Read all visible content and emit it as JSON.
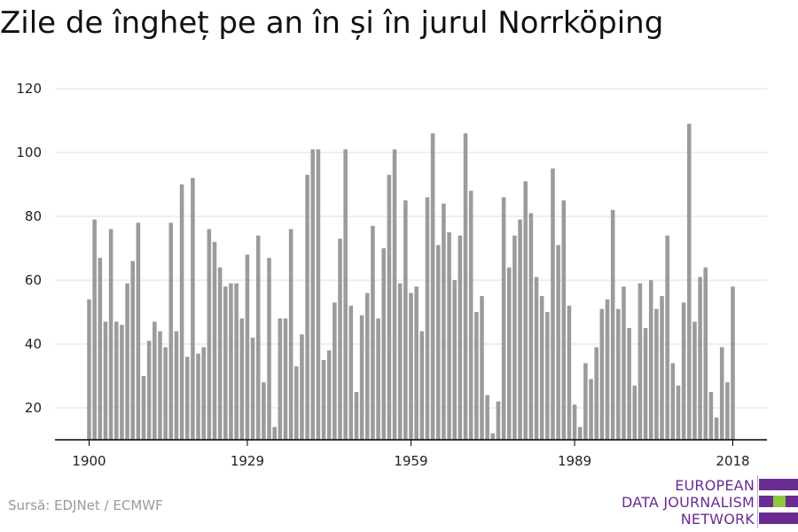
{
  "title": "Zile de îngheț pe an în și în jurul Norrköping",
  "source": "Sursă: EDJNet / ECMWF",
  "logo": {
    "lines": [
      "EUROPEAN",
      "DATA JOURNALISM",
      "NETWORK"
    ],
    "colors": {
      "purple": "#6a2c91",
      "green": "#8dc63f"
    }
  },
  "colors": {
    "bar": "#9b9b9b",
    "grid": "#dddddd",
    "axis": "#000000"
  },
  "chart_data": {
    "type": "bar",
    "title": "Zile de îngheț pe an în și în jurul Norrköping",
    "xlabel": "",
    "ylabel": "",
    "ylim": [
      10,
      120
    ],
    "yticks": [
      20,
      40,
      60,
      80,
      100,
      120
    ],
    "xticks": [
      1900,
      1929,
      1959,
      1989,
      2018
    ],
    "grid": true,
    "legend": "none",
    "x": [
      1900,
      1901,
      1902,
      1903,
      1904,
      1905,
      1906,
      1907,
      1908,
      1909,
      1910,
      1911,
      1912,
      1913,
      1914,
      1915,
      1916,
      1917,
      1918,
      1919,
      1920,
      1921,
      1922,
      1923,
      1924,
      1925,
      1926,
      1927,
      1928,
      1929,
      1930,
      1931,
      1932,
      1933,
      1934,
      1935,
      1936,
      1937,
      1938,
      1939,
      1940,
      1941,
      1942,
      1943,
      1944,
      1945,
      1946,
      1947,
      1948,
      1949,
      1950,
      1951,
      1952,
      1953,
      1954,
      1955,
      1956,
      1957,
      1958,
      1959,
      1960,
      1961,
      1962,
      1963,
      1964,
      1965,
      1966,
      1967,
      1968,
      1969,
      1970,
      1971,
      1972,
      1973,
      1974,
      1975,
      1976,
      1977,
      1978,
      1979,
      1980,
      1981,
      1982,
      1983,
      1984,
      1985,
      1986,
      1987,
      1988,
      1989,
      1990,
      1991,
      1992,
      1993,
      1994,
      1995,
      1996,
      1997,
      1998,
      1999,
      2000,
      2001,
      2002,
      2003,
      2004,
      2005,
      2006,
      2007,
      2008,
      2009,
      2010,
      2011,
      2012,
      2013,
      2014,
      2015,
      2016,
      2017,
      2018
    ],
    "values": [
      54,
      79,
      67,
      47,
      76,
      47,
      46,
      59,
      66,
      78,
      30,
      41,
      47,
      44,
      39,
      78,
      44,
      90,
      36,
      92,
      37,
      39,
      76,
      72,
      64,
      58,
      59,
      59,
      48,
      68,
      42,
      74,
      28,
      67,
      14,
      48,
      48,
      76,
      33,
      43,
      93,
      101,
      101,
      35,
      38,
      53,
      73,
      101,
      52,
      25,
      49,
      56,
      77,
      48,
      70,
      93,
      101,
      59,
      85,
      56,
      58,
      44,
      86,
      106,
      71,
      84,
      75,
      60,
      74,
      106,
      88,
      50,
      55,
      24,
      12,
      22,
      86,
      64,
      74,
      79,
      91,
      81,
      61,
      55,
      50,
      95,
      71,
      85,
      52,
      21,
      14,
      34,
      29,
      39,
      51,
      54,
      82,
      51,
      58,
      45,
      27,
      59,
      45,
      60,
      51,
      55,
      74,
      34,
      27,
      53,
      109,
      47,
      61,
      64,
      25,
      17,
      39,
      28,
      58
    ]
  }
}
